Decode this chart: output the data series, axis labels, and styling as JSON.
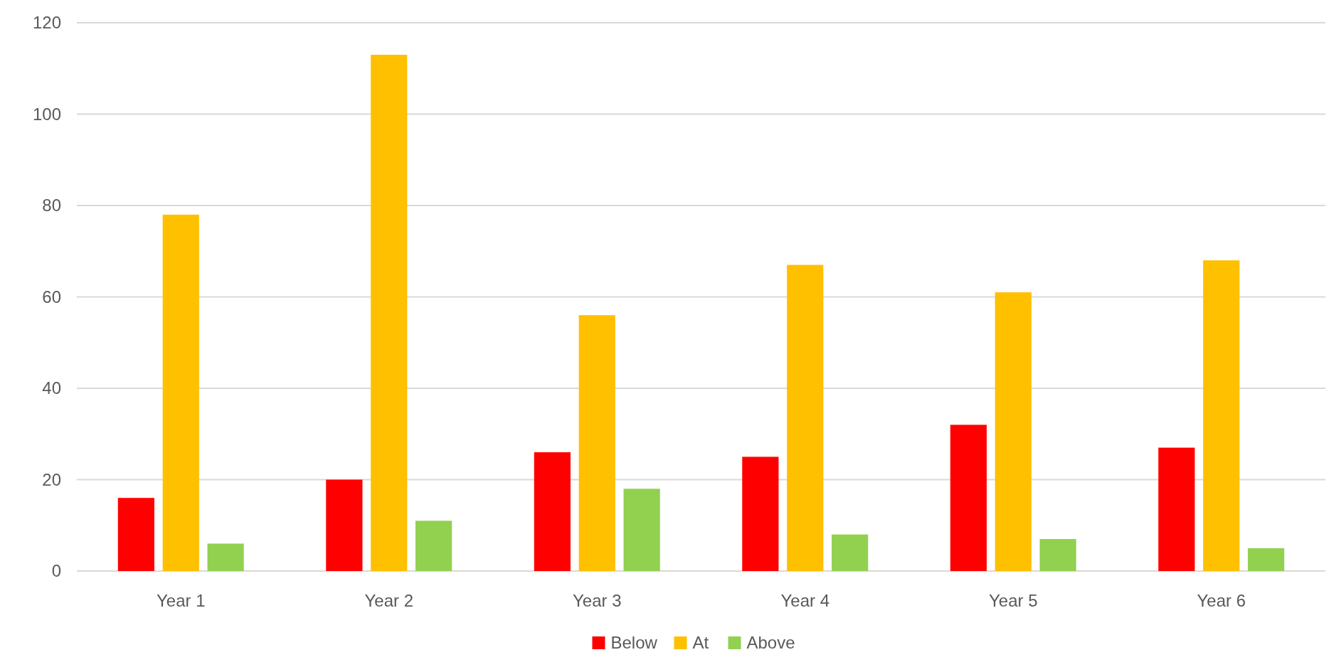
{
  "chart_data": {
    "type": "bar",
    "categories": [
      "Year 1",
      "Year 2",
      "Year 3",
      "Year 4",
      "Year 5",
      "Year 6"
    ],
    "series": [
      {
        "name": "Below",
        "color": "#ff0000",
        "values": [
          16,
          20,
          26,
          25,
          32,
          27
        ]
      },
      {
        "name": "At",
        "color": "#ffc000",
        "values": [
          78,
          113,
          56,
          67,
          61,
          68
        ]
      },
      {
        "name": "Above",
        "color": "#92d050",
        "values": [
          6,
          11,
          18,
          8,
          7,
          5
        ]
      }
    ],
    "ylim": [
      0,
      120
    ],
    "yticks": [
      0,
      20,
      40,
      60,
      80,
      100,
      120
    ],
    "grid": "y",
    "legend": "bottom"
  }
}
